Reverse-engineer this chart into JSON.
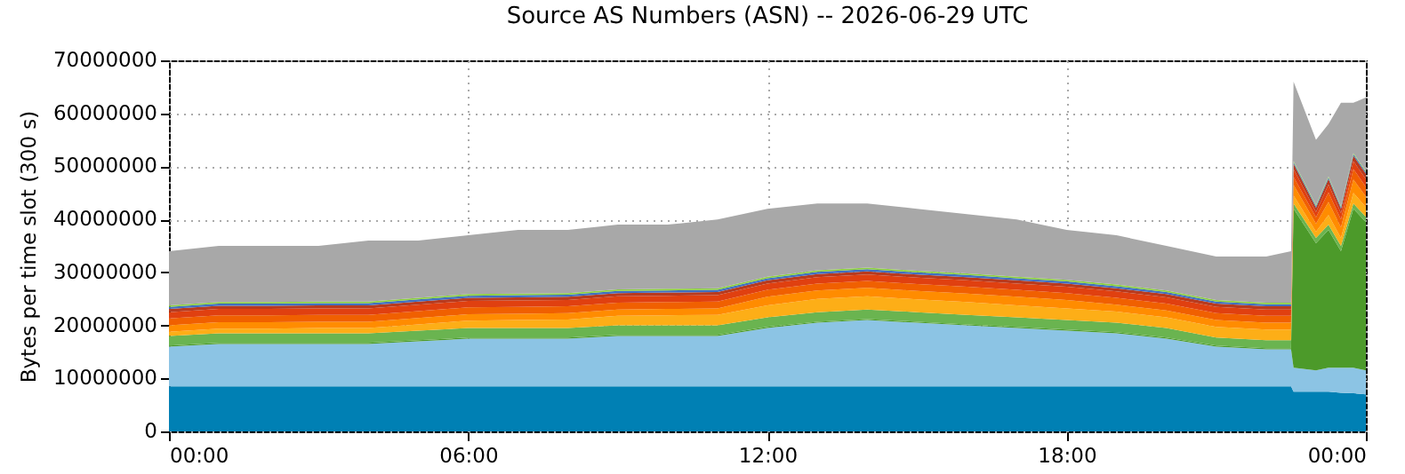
{
  "chart_data": {
    "type": "area",
    "stacked": true,
    "title": "Source AS Numbers (ASN) -- 2026-06-29 UTC",
    "ylabel": "Bytes per time slot (300 s)",
    "x": [
      0,
      1,
      2,
      3,
      4,
      5,
      6,
      7,
      8,
      9,
      10,
      11,
      12,
      13,
      14,
      15,
      16,
      17,
      18,
      19,
      20,
      21,
      22,
      22.5,
      22.55,
      23,
      23.25,
      23.5,
      23.75,
      24
    ],
    "xlim": [
      0,
      24
    ],
    "xticks": [
      {
        "value": 0,
        "label": "00:00"
      },
      {
        "value": 6,
        "label": "06:00"
      },
      {
        "value": 12,
        "label": "12:00"
      },
      {
        "value": 18,
        "label": "18:00"
      },
      {
        "value": 24,
        "label": "00:00"
      }
    ],
    "ylim": [
      0,
      70000000
    ],
    "yticks": [
      0,
      10000000,
      20000000,
      30000000,
      40000000,
      50000000,
      60000000,
      70000000
    ],
    "grid": true,
    "legend": false,
    "series": [
      {
        "color": "#0080b4",
        "values": [
          8500000,
          8500000,
          8500000,
          8500000,
          8500000,
          8500000,
          8500000,
          8500000,
          8500000,
          8500000,
          8500000,
          8500000,
          8500000,
          8500000,
          8500000,
          8500000,
          8500000,
          8500000,
          8500000,
          8500000,
          8500000,
          8500000,
          8500000,
          8500000,
          7500000,
          7500000,
          7500000,
          7300000,
          7200000,
          7000000
        ]
      },
      {
        "color": "#8cc4e4",
        "values": [
          7500000,
          8000000,
          8000000,
          8000000,
          8000000,
          8500000,
          9000000,
          9000000,
          9000000,
          9500000,
          9500000,
          9500000,
          11000000,
          12000000,
          12500000,
          12000000,
          11500000,
          11000000,
          10500000,
          10000000,
          9000000,
          7500000,
          7000000,
          7000000,
          4500000,
          4000000,
          4500000,
          4700000,
          4800000,
          4500000
        ]
      },
      {
        "color": "#4c9a2a",
        "values": [
          200000,
          200000,
          200000,
          200000,
          200000,
          200000,
          200000,
          200000,
          200000,
          200000,
          200000,
          200000,
          200000,
          200000,
          200000,
          200000,
          200000,
          200000,
          200000,
          200000,
          200000,
          200000,
          200000,
          200000,
          30000000,
          24000000,
          26000000,
          22000000,
          30000000,
          28000000
        ]
      },
      {
        "color": "#6ab450",
        "values": [
          1800000,
          1800000,
          1800000,
          1800000,
          1800000,
          1800000,
          1800000,
          1800000,
          1800000,
          1800000,
          1800000,
          1800000,
          1800000,
          1800000,
          1800000,
          1800000,
          1800000,
          1800000,
          1800000,
          1800000,
          1800000,
          1500000,
          1500000,
          1500000,
          1000000,
          1000000,
          1000000,
          1000000,
          1000000,
          1000000
        ]
      },
      {
        "color": "#fdae17",
        "values": [
          800000,
          900000,
          900000,
          1000000,
          1000000,
          1200000,
          1400000,
          1500000,
          1600000,
          1800000,
          1900000,
          2000000,
          2300000,
          2500000,
          2500000,
          2400000,
          2400000,
          2300000,
          2200000,
          2100000,
          2000000,
          2000000,
          2000000,
          2000000,
          1500000,
          1200000,
          1800000,
          1500000,
          2000000,
          1800000
        ]
      },
      {
        "color": "#ff8c00",
        "values": [
          1200000,
          1200000,
          1200000,
          1200000,
          1200000,
          1200000,
          1200000,
          1200000,
          1200000,
          1200000,
          1200000,
          1200000,
          1600000,
          1600000,
          1600000,
          1600000,
          1600000,
          1600000,
          1600000,
          1300000,
          1300000,
          1300000,
          1300000,
          1300000,
          2000000,
          1500000,
          2500000,
          2000000,
          2500000,
          2000000
        ]
      },
      {
        "color": "#f06000",
        "values": [
          1300000,
          1300000,
          1300000,
          1300000,
          1300000,
          1300000,
          1300000,
          1300000,
          1300000,
          1300000,
          1300000,
          1300000,
          1300000,
          1300000,
          1300000,
          1300000,
          1300000,
          1300000,
          1300000,
          1300000,
          1300000,
          1300000,
          1300000,
          1300000,
          1500000,
          1200000,
          1800000,
          1500000,
          2000000,
          1800000
        ]
      },
      {
        "color": "#e04010",
        "values": [
          1200000,
          1200000,
          1200000,
          1200000,
          1200000,
          1200000,
          1200000,
          1200000,
          1200000,
          1200000,
          1200000,
          1200000,
          1200000,
          1200000,
          1200000,
          1200000,
          1200000,
          1200000,
          1200000,
          1200000,
          1200000,
          1200000,
          1200000,
          1200000,
          1500000,
          1000000,
          1500000,
          1200000,
          1500000,
          1500000
        ]
      },
      {
        "color": "#b83a1e",
        "values": [
          600000,
          600000,
          600000,
          600000,
          600000,
          600000,
          600000,
          600000,
          600000,
          600000,
          600000,
          600000,
          600000,
          600000,
          600000,
          600000,
          600000,
          600000,
          600000,
          600000,
          600000,
          600000,
          600000,
          600000,
          1000000,
          800000,
          1000000,
          800000,
          1000000,
          1000000
        ]
      },
      {
        "color": "#4070c0",
        "values": [
          400000,
          400000,
          400000,
          400000,
          400000,
          400000,
          400000,
          400000,
          400000,
          400000,
          400000,
          400000,
          400000,
          400000,
          400000,
          400000,
          400000,
          400000,
          400000,
          400000,
          400000,
          400000,
          400000,
          400000,
          300000,
          300000,
          300000,
          300000,
          300000,
          300000
        ]
      },
      {
        "color": "#8cd040",
        "values": [
          300000,
          300000,
          300000,
          300000,
          300000,
          300000,
          300000,
          300000,
          300000,
          300000,
          300000,
          300000,
          300000,
          300000,
          300000,
          300000,
          300000,
          300000,
          300000,
          300000,
          300000,
          300000,
          300000,
          300000,
          200000,
          200000,
          200000,
          200000,
          200000,
          200000
        ]
      },
      {
        "color": "#a8a8a8",
        "values": [
          10200000,
          10600000,
          10600000,
          10500000,
          11500000,
          10800000,
          11100000,
          12000000,
          11900000,
          12200000,
          12100000,
          13000000,
          12800000,
          12600000,
          12100000,
          11700000,
          11200000,
          10800000,
          9400000,
          9300000,
          8400000,
          8200000,
          8700000,
          9700000,
          15000000,
          12300000,
          9900000,
          19500000,
          9500000,
          13900000
        ]
      }
    ]
  }
}
